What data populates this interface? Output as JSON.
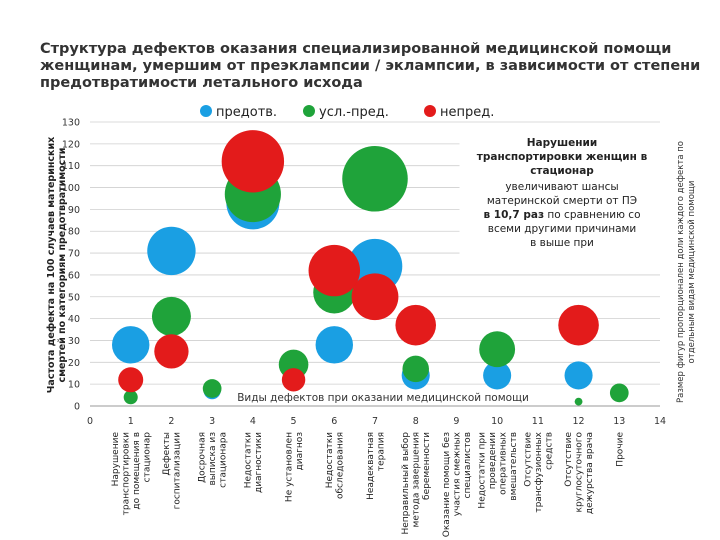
{
  "chart_data": {
    "type": "bubble",
    "title_lines": [
      "Структура дефектов оказания специализированной медицинской помощи",
      "женщинам, умершим от преэклампсии / эклампсии, в зависимости от степени",
      "предотвратимости летального исхода"
    ],
    "ylabel_lines": [
      "Частота дефекта на 100 случаев материнских",
      "смертей по категориям предотвратимости"
    ],
    "right_label_lines": [
      "Размер фигур пропорционален доли каждого дефекта по",
      "отдельным видам медицинской помощи"
    ],
    "inner_label": "Виды дефектов при оказании медицинской помощи",
    "xlim": [
      0,
      14
    ],
    "ylim": [
      0,
      130
    ],
    "x_ticks": [
      "0",
      "1",
      "2",
      "3",
      "4",
      "5",
      "6",
      "7",
      "8",
      "9",
      "10",
      "11",
      "12",
      "13",
      "14"
    ],
    "y_ticks": [
      "0",
      "10",
      "20",
      "30",
      "40",
      "50",
      "60",
      "70",
      "80",
      "90",
      "100",
      "110",
      "120",
      "130"
    ],
    "legend": [
      {
        "label": "предотв.",
        "color": "#1a9fe3"
      },
      {
        "label": "усл.-пред.",
        "color": "#1fa33a"
      },
      {
        "label": "непред.",
        "color": "#e31b1b"
      }
    ],
    "categories": [
      {
        "x": 1,
        "label": [
          "Нарушение",
          "транспортировки",
          "до помещения в",
          "стационар"
        ]
      },
      {
        "x": 2,
        "label": [
          "Дефекты",
          "госпитализации"
        ]
      },
      {
        "x": 3,
        "label": [
          "Досрочная",
          "выписка из",
          "стационара"
        ]
      },
      {
        "x": 4,
        "label": [
          "Недостатки",
          "диагностики"
        ]
      },
      {
        "x": 5,
        "label": [
          "Не установлен",
          "диагноз"
        ]
      },
      {
        "x": 6,
        "label": [
          "Недостатки",
          "обследования"
        ]
      },
      {
        "x": 7,
        "label": [
          "Неадекватная",
          "терапия"
        ]
      },
      {
        "x": 8,
        "label": [
          "Неправильный выбор",
          "метода завершения",
          "беременности"
        ]
      },
      {
        "x": 9,
        "label": [
          "Оказание помощи без",
          "участия смежных",
          "специалистов"
        ]
      },
      {
        "x": 10,
        "label": [
          "Недостатки при",
          "проведении",
          "оперативных",
          "вмешательств"
        ]
      },
      {
        "x": 11,
        "label": [
          "Отсутствие",
          "трансфузионных",
          "средств"
        ]
      },
      {
        "x": 12,
        "label": [
          "Отсутствие",
          "круглосуточного",
          "дежурства врача"
        ]
      },
      {
        "x": 13,
        "label": [
          "Прочие"
        ]
      }
    ],
    "series": [
      {
        "name": "предотв.",
        "color": "#1a9fe3",
        "points": [
          {
            "x": 1,
            "y": 28,
            "size": 2.4
          },
          {
            "x": 2,
            "y": 71,
            "size": 3.1
          },
          {
            "x": 3,
            "y": 7,
            "size": 1.1
          },
          {
            "x": 4,
            "y": 93,
            "size": 3.4
          },
          {
            "x": 6,
            "y": 28,
            "size": 2.4
          },
          {
            "x": 7,
            "y": 64,
            "size": 3.5
          },
          {
            "x": 8,
            "y": 14,
            "size": 1.8
          },
          {
            "x": 10,
            "y": 14,
            "size": 1.8
          },
          {
            "x": 12,
            "y": 14,
            "size": 1.8
          }
        ]
      },
      {
        "name": "усл.-пред.",
        "color": "#1fa33a",
        "points": [
          {
            "x": 1,
            "y": 4,
            "size": 0.9
          },
          {
            "x": 2,
            "y": 41,
            "size": 2.5
          },
          {
            "x": 3,
            "y": 8,
            "size": 1.2
          },
          {
            "x": 4,
            "y": 97,
            "size": 3.6
          },
          {
            "x": 5,
            "y": 19,
            "size": 1.9
          },
          {
            "x": 6,
            "y": 52,
            "size": 2.7
          },
          {
            "x": 7,
            "y": 104,
            "size": 4.2
          },
          {
            "x": 8,
            "y": 17,
            "size": 1.7
          },
          {
            "x": 10,
            "y": 26,
            "size": 2.3
          },
          {
            "x": 12,
            "y": 2,
            "size": 0.5
          },
          {
            "x": 13,
            "y": 6,
            "size": 1.2
          }
        ]
      },
      {
        "name": "непред.",
        "color": "#e31b1b",
        "points": [
          {
            "x": 1,
            "y": 12,
            "size": 1.6
          },
          {
            "x": 2,
            "y": 25,
            "size": 2.2
          },
          {
            "x": 4,
            "y": 112,
            "size": 4.0
          },
          {
            "x": 5,
            "y": 12,
            "size": 1.5
          },
          {
            "x": 6,
            "y": 62,
            "size": 3.3
          },
          {
            "x": 7,
            "y": 50,
            "size": 3.0
          },
          {
            "x": 8,
            "y": 37,
            "size": 2.6
          },
          {
            "x": 12,
            "y": 37,
            "size": 2.6
          }
        ]
      }
    ],
    "annotation": {
      "bold_lines": [
        "Нарушении",
        "транспортировки женщин в",
        "стационар"
      ],
      "lines": [
        {
          "text": "увеличивают шансы",
          "bold": false
        },
        {
          "text": "материнской смерти от ПЭ",
          "bold": false
        },
        {
          "text": "в 10,7 раз по сравнению со",
          "bold_prefix": "в 10,7 раз"
        },
        {
          "text": "всеми другими причинами",
          "bold": false
        },
        {
          "text": "в выше при",
          "bold": false
        }
      ]
    }
  }
}
